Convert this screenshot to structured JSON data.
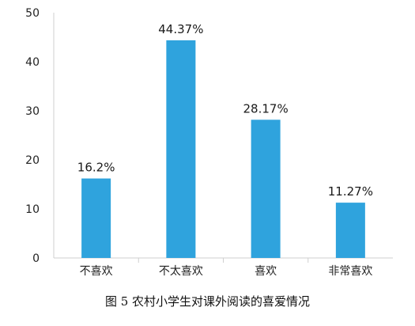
{
  "caption": "图 5  农村小学生对课外阅读的喜爱情况",
  "chart_data": {
    "type": "bar",
    "categories": [
      "不喜欢",
      "不太喜欢",
      "喜欢",
      "非常喜欢"
    ],
    "values": [
      16.2,
      44.37,
      28.17,
      11.27
    ],
    "data_labels": [
      "16.2%",
      "44.37%",
      "28.17%",
      "11.27%"
    ],
    "title": "",
    "xlabel": "",
    "ylabel": "",
    "ylim": [
      0,
      50
    ],
    "yticks": [
      0,
      10,
      20,
      30,
      40,
      50
    ],
    "grid": false,
    "bar_color": "#2fa3dd",
    "axis_color": "#cfcfcf"
  }
}
